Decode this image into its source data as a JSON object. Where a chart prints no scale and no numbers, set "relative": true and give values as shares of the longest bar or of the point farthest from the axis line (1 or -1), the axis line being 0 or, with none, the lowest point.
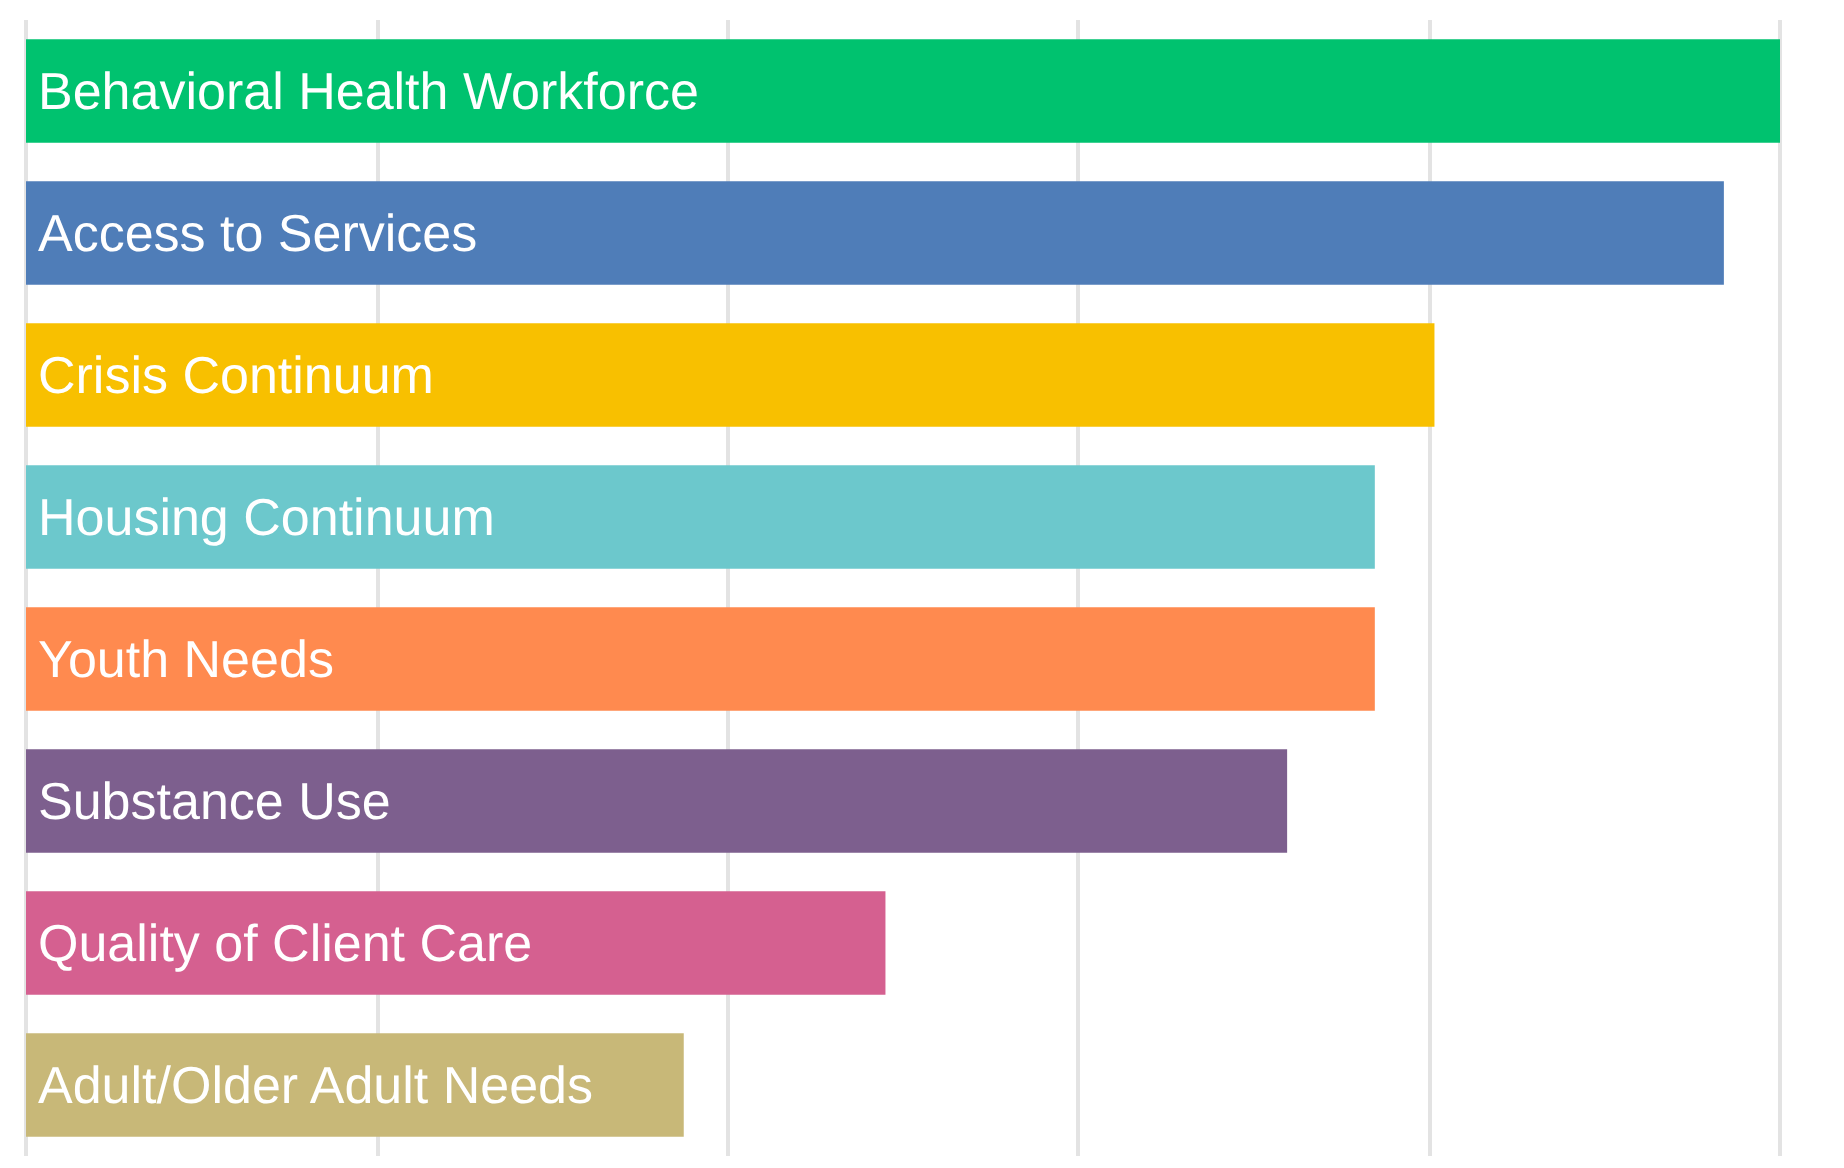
{
  "chart_data": {
    "type": "bar",
    "orientation": "horizontal",
    "relative": true,
    "grid": "x",
    "tick_labels": false,
    "categories": [
      "Behavioral Health Workforce",
      "Access to Services",
      "Crisis Continuum",
      "Housing Continuum",
      "Youth Needs",
      "Substance Use",
      "Quality of Client Care",
      "Adult/Older Adult Needs"
    ],
    "values": [
      1,
      0.968,
      0.803,
      0.769,
      0.769,
      0.719,
      0.49,
      0.375
    ],
    "colors": [
      "#00c26f",
      "#4f7db8",
      "#f8c000",
      "#6cc8cc",
      "#ff8a4f",
      "#7d5f8e",
      "#d56090",
      "#c8b878"
    ]
  }
}
